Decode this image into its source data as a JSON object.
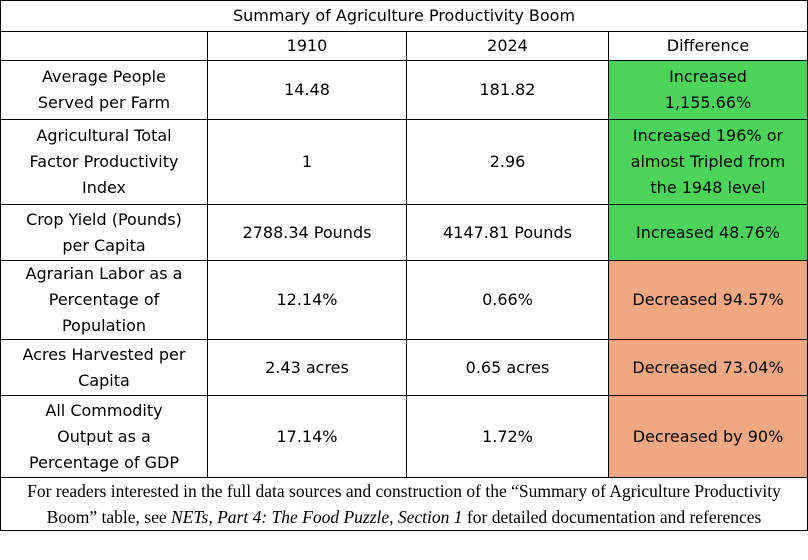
{
  "table": {
    "title": "Summary of Agriculture Productivity Boom",
    "headers": [
      "",
      "1910",
      "2024",
      "Difference"
    ],
    "rows": [
      {
        "label_lines": [
          "Average People",
          "Served per Farm"
        ],
        "v1910": "14.48",
        "v2024": "181.82",
        "diff_lines": [
          "Increased",
          "1,155.66%"
        ],
        "trend": "increase"
      },
      {
        "label_lines": [
          "Agricultural Total",
          "Factor Productivity",
          "Index"
        ],
        "v1910": "1",
        "v2024": "2.96",
        "diff_lines": [
          "Increased 196% or",
          "almost Tripled from",
          "the 1948 level"
        ],
        "trend": "increase"
      },
      {
        "label_lines": [
          "Crop Yield (Pounds)",
          "per Capita"
        ],
        "v1910": "2788.34 Pounds",
        "v2024": "4147.81 Pounds",
        "diff_lines": [
          "Increased 48.76%"
        ],
        "trend": "increase"
      },
      {
        "label_lines": [
          "Agrarian Labor as a",
          "Percentage of",
          "Population"
        ],
        "v1910": "12.14%",
        "v2024": "0.66%",
        "diff_lines": [
          "Decreased 94.57%"
        ],
        "trend": "decrease"
      },
      {
        "label_lines": [
          "Acres Harvested per",
          "Capita"
        ],
        "v1910": "2.43 acres",
        "v2024": "0.65 acres",
        "diff_lines": [
          "Decreased 73.04%"
        ],
        "trend": "decrease"
      },
      {
        "label_lines": [
          "All Commodity",
          "Output as a",
          "Percentage of GDP"
        ],
        "v1910": "17.14%",
        "v2024": "1.72%",
        "diff_lines": [
          "Decreased by 90%"
        ],
        "trend": "decrease"
      }
    ],
    "colors": {
      "increase": "#4cd45a",
      "decrease": "#f0a882"
    }
  },
  "footnote": {
    "before": "For readers interested in the full data sources and construction of the “Summary of Agriculture Productivity Boom” table, see ",
    "italic": "NETs, Part 4: The Food Puzzle, Section 1",
    "after": " for detailed documentation and references"
  }
}
